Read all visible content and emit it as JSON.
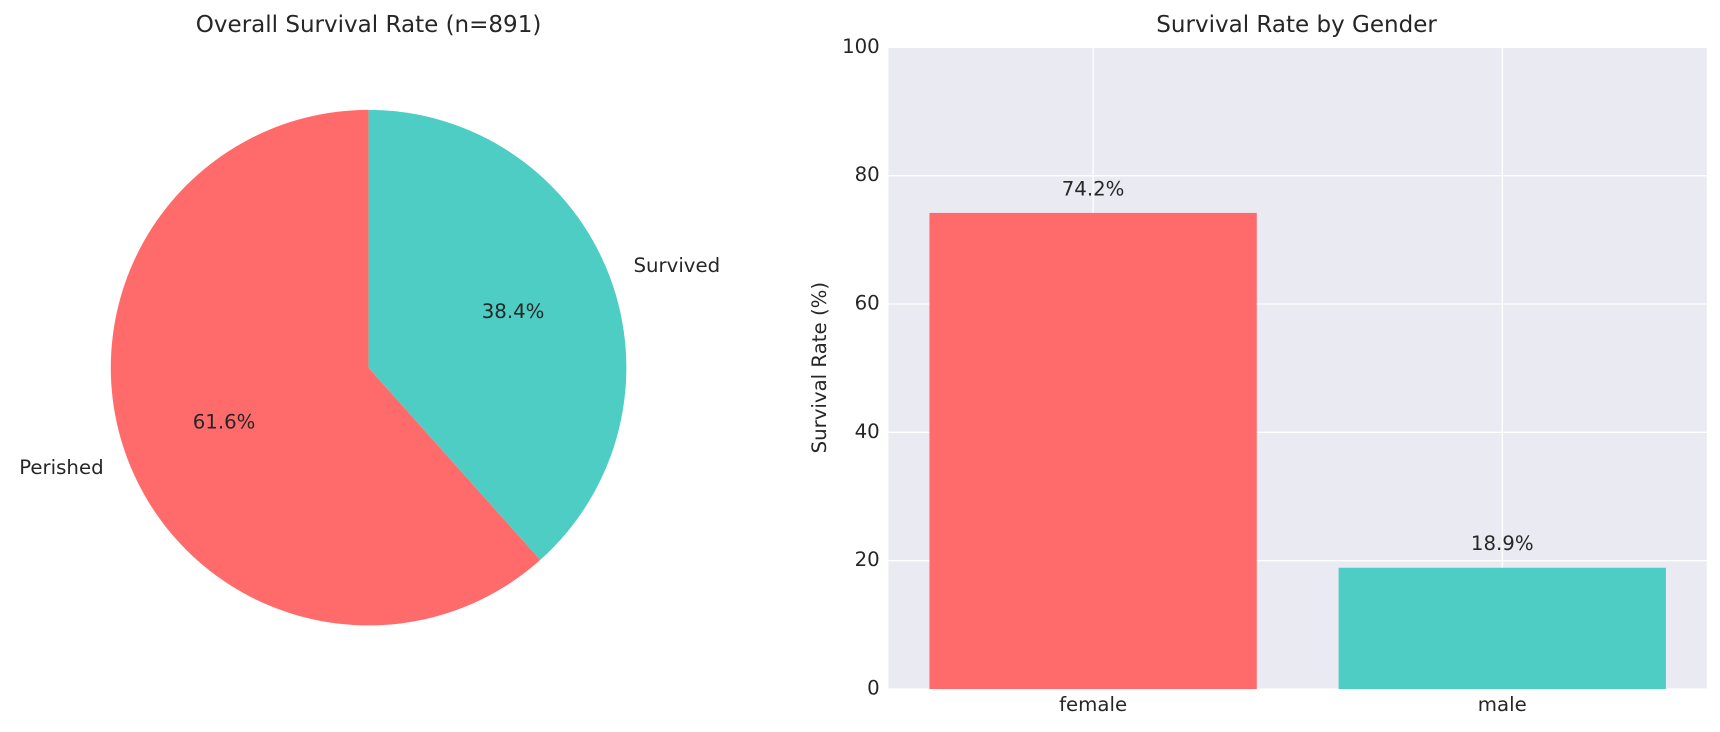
{
  "chart_data": [
    {
      "type": "pie",
      "title": "Overall Survival Rate (n=891)",
      "categories": [
        "Perished",
        "Survived"
      ],
      "values": [
        61.6,
        38.4
      ],
      "value_labels": [
        "61.6%",
        "38.4%"
      ],
      "colors": [
        "#ff6b6b",
        "#4ecdc4"
      ],
      "startangle": 90
    },
    {
      "type": "bar",
      "title": "Survival Rate by Gender",
      "ylabel": "Survival Rate (%)",
      "categories": [
        "female",
        "male"
      ],
      "values": [
        74.2,
        18.9
      ],
      "value_labels": [
        "74.2%",
        "18.9%"
      ],
      "colors": [
        "#ff6b6b",
        "#4ecdc4"
      ],
      "ylim": [
        0,
        100
      ],
      "yticks": [
        0,
        20,
        40,
        60,
        80,
        100
      ],
      "grid": true
    }
  ]
}
